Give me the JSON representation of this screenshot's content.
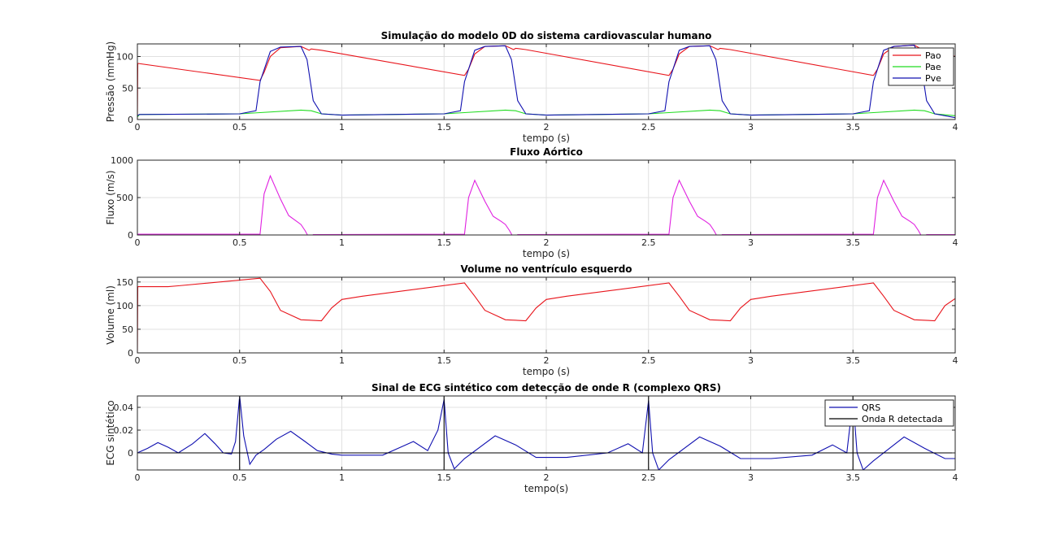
{
  "chart_data": [
    {
      "type": "line",
      "title": "Simulação do modelo 0D do sistema cardiovascular humano",
      "xlabel": "tempo (s)",
      "ylabel": "Pressão (mmHg)",
      "xlim": [
        0,
        4
      ],
      "ylim": [
        0,
        120
      ],
      "xticks": [
        0,
        0.5,
        1,
        1.5,
        2,
        2.5,
        3,
        3.5,
        4
      ],
      "xtick_labels": [
        "0",
        "0.5",
        "1",
        "1.5",
        "2",
        "2.5",
        "3",
        "3.5",
        "4"
      ],
      "yticks": [
        0,
        50,
        100
      ],
      "ytick_labels": [
        "0",
        "50",
        "100"
      ],
      "grid": true,
      "legend": "top-right",
      "series": [
        {
          "name": "Pao",
          "color": "#e8141b",
          "x": [
            0,
            0.002,
            0.6,
            0.62,
            0.65,
            0.7,
            0.8,
            0.84,
            0.85,
            0.9,
            1.6,
            1.62,
            1.65,
            1.7,
            1.8,
            1.84,
            1.85,
            1.9,
            2.6,
            2.62,
            2.65,
            2.7,
            2.8,
            2.84,
            2.85,
            2.9,
            3.6,
            3.62,
            3.65,
            3.7,
            3.8,
            3.84,
            3.85,
            3.9,
            4.0
          ],
          "y": [
            0,
            89,
            62,
            75,
            100,
            114,
            116,
            110,
            112,
            110,
            70,
            80,
            104,
            116,
            117,
            111,
            113,
            111,
            70,
            80,
            104,
            116,
            117,
            111,
            113,
            111,
            70,
            80,
            104,
            116,
            118,
            111,
            113,
            111,
            100
          ]
        },
        {
          "name": "Pae",
          "color": "#20dc20",
          "x": [
            0,
            0.01,
            0.5,
            0.6,
            0.8,
            0.85,
            0.9,
            1.0,
            1.5,
            1.6,
            1.8,
            1.85,
            1.9,
            2.0,
            2.5,
            2.6,
            2.8,
            2.85,
            2.9,
            3.0,
            3.5,
            3.6,
            3.8,
            3.85,
            3.9,
            4.0
          ],
          "y": [
            4,
            8,
            9,
            11,
            15,
            14,
            9,
            7,
            9,
            11,
            15,
            14,
            9,
            7,
            9,
            11,
            15,
            14,
            9,
            7,
            9,
            11,
            15,
            14,
            9,
            6
          ]
        },
        {
          "name": "Pve",
          "color": "#1010b0",
          "x": [
            0,
            0.01,
            0.5,
            0.58,
            0.6,
            0.65,
            0.7,
            0.8,
            0.83,
            0.86,
            0.9,
            1.0,
            1.5,
            1.58,
            1.6,
            1.65,
            1.7,
            1.8,
            1.83,
            1.86,
            1.9,
            2.0,
            2.5,
            2.58,
            2.6,
            2.65,
            2.7,
            2.8,
            2.83,
            2.86,
            2.9,
            3.0,
            3.5,
            3.58,
            3.6,
            3.65,
            3.7,
            3.8,
            3.83,
            3.86,
            3.9,
            4.0
          ],
          "y": [
            6,
            8,
            9,
            14,
            60,
            108,
            115,
            116,
            95,
            30,
            9,
            7,
            9,
            14,
            60,
            110,
            116,
            117,
            95,
            30,
            9,
            7,
            9,
            14,
            60,
            110,
            116,
            117,
            95,
            30,
            9,
            7,
            9,
            14,
            60,
            110,
            116,
            118,
            95,
            30,
            9,
            3
          ]
        }
      ]
    },
    {
      "type": "line",
      "title": "Fluxo Aórtico",
      "xlabel": "tempo (s)",
      "ylabel": "Fluxo (m/s)",
      "xlim": [
        0,
        4
      ],
      "ylim": [
        0,
        1000
      ],
      "xticks": [
        0,
        0.5,
        1,
        1.5,
        2,
        2.5,
        3,
        3.5,
        4
      ],
      "xtick_labels": [
        "0",
        "0.5",
        "1",
        "1.5",
        "2",
        "2.5",
        "3",
        "3.5",
        "4"
      ],
      "yticks": [
        0,
        500,
        1000
      ],
      "ytick_labels": [
        "0",
        "500",
        "1000"
      ],
      "grid": true,
      "series": [
        {
          "color": "#e020e0",
          "x": [
            0,
            0.6,
            0.62,
            0.65,
            0.7,
            0.74,
            0.78,
            0.8,
            0.82,
            0.84,
            0.86,
            1.6,
            1.62,
            1.65,
            1.7,
            1.74,
            1.78,
            1.8,
            1.82,
            1.84,
            1.86,
            2.6,
            2.62,
            2.65,
            2.7,
            2.74,
            2.78,
            2.8,
            2.82,
            2.84,
            2.86,
            3.6,
            3.62,
            3.65,
            3.7,
            3.74,
            3.78,
            3.8,
            3.82,
            3.84,
            3.86,
            4.0
          ],
          "y": [
            10,
            10,
            550,
            790,
            480,
            260,
            180,
            140,
            60,
            -40,
            5,
            10,
            500,
            730,
            450,
            250,
            180,
            140,
            60,
            -40,
            5,
            10,
            500,
            730,
            450,
            250,
            180,
            140,
            60,
            -40,
            5,
            10,
            500,
            730,
            450,
            250,
            180,
            140,
            60,
            -40,
            5,
            5
          ]
        }
      ]
    },
    {
      "type": "line",
      "title": "Volume no ventrículo esquerdo",
      "xlabel": "tempo (s)",
      "ylabel": "Volume (ml)",
      "xlim": [
        0,
        4
      ],
      "ylim": [
        0,
        160
      ],
      "xticks": [
        0,
        0.5,
        1,
        1.5,
        2,
        2.5,
        3,
        3.5,
        4
      ],
      "xtick_labels": [
        "0",
        "0.5",
        "1",
        "1.5",
        "2",
        "2.5",
        "3",
        "3.5",
        "4"
      ],
      "yticks": [
        0,
        50,
        100,
        150
      ],
      "ytick_labels": [
        "0",
        "50",
        "100",
        "150"
      ],
      "grid": true,
      "series": [
        {
          "color": "#e8141b",
          "x": [
            0,
            0.002,
            0.15,
            0.2,
            0.6,
            0.65,
            0.7,
            0.8,
            0.9,
            0.95,
            1.0,
            1.1,
            1.6,
            1.65,
            1.7,
            1.8,
            1.9,
            1.95,
            2.0,
            2.1,
            2.6,
            2.65,
            2.7,
            2.8,
            2.9,
            2.95,
            3.0,
            3.1,
            3.6,
            3.65,
            3.7,
            3.8,
            3.9,
            3.95,
            4.0
          ],
          "y": [
            0,
            140,
            140,
            142,
            158,
            130,
            90,
            70,
            68,
            95,
            113,
            120,
            148,
            120,
            90,
            70,
            68,
            95,
            113,
            120,
            148,
            120,
            90,
            70,
            68,
            95,
            113,
            120,
            148,
            120,
            90,
            70,
            68,
            100,
            115
          ]
        }
      ]
    },
    {
      "type": "line",
      "title": "Sinal de ECG sintético com detecção de onde R (complexo QRS)",
      "xlabel": "tempo(s)",
      "ylabel": "ECG sintético",
      "xlim": [
        0,
        4
      ],
      "ylim": [
        -0.015,
        0.05
      ],
      "xticks": [
        0,
        0.5,
        1,
        1.5,
        2,
        2.5,
        3,
        3.5,
        4
      ],
      "xtick_labels": [
        "0",
        "0.5",
        "1",
        "1.5",
        "2",
        "2.5",
        "3",
        "3.5",
        "4"
      ],
      "yticks": [
        0,
        0.02,
        0.04
      ],
      "ytick_labels": [
        "0",
        "0.02",
        "0.04"
      ],
      "grid": true,
      "legend": "top-right",
      "series": [
        {
          "name": "QRS",
          "color": "#1010b0",
          "x": [
            0,
            0.05,
            0.1,
            0.15,
            0.2,
            0.27,
            0.33,
            0.38,
            0.42,
            0.46,
            0.48,
            0.5,
            0.52,
            0.55,
            0.58,
            0.62,
            0.68,
            0.75,
            0.82,
            0.88,
            0.95,
            1.0,
            1.2,
            1.3,
            1.35,
            1.42,
            1.47,
            1.5,
            1.52,
            1.55,
            1.6,
            1.75,
            1.85,
            1.95,
            2.1,
            2.3,
            2.4,
            2.47,
            2.5,
            2.52,
            2.55,
            2.6,
            2.75,
            2.85,
            2.95,
            3.1,
            3.3,
            3.4,
            3.47,
            3.5,
            3.52,
            3.55,
            3.6,
            3.75,
            3.85,
            3.95,
            4.0
          ],
          "y": [
            0,
            0.004,
            0.009,
            0.005,
            0.0,
            0.008,
            0.017,
            0.008,
            0.0,
            -0.001,
            0.01,
            0.05,
            0.015,
            -0.01,
            -0.002,
            0.003,
            0.012,
            0.019,
            0.01,
            0.002,
            -0.001,
            -0.002,
            -0.002,
            0.006,
            0.01,
            0.002,
            0.02,
            0.047,
            0.0,
            -0.014,
            -0.005,
            0.015,
            0.007,
            -0.004,
            -0.004,
            0.0,
            0.008,
            0.0,
            0.046,
            0.0,
            -0.015,
            -0.006,
            0.014,
            0.006,
            -0.005,
            -0.005,
            -0.002,
            0.007,
            0.0,
            0.047,
            0.0,
            -0.015,
            -0.007,
            0.014,
            0.004,
            -0.005,
            -0.005
          ]
        },
        {
          "name": "Onda R detectada",
          "color": "#000000",
          "x": [
            0,
            4
          ],
          "y": [
            0,
            0
          ],
          "markers_x": [
            0.5,
            1.5,
            2.5,
            3.5
          ]
        }
      ]
    }
  ]
}
